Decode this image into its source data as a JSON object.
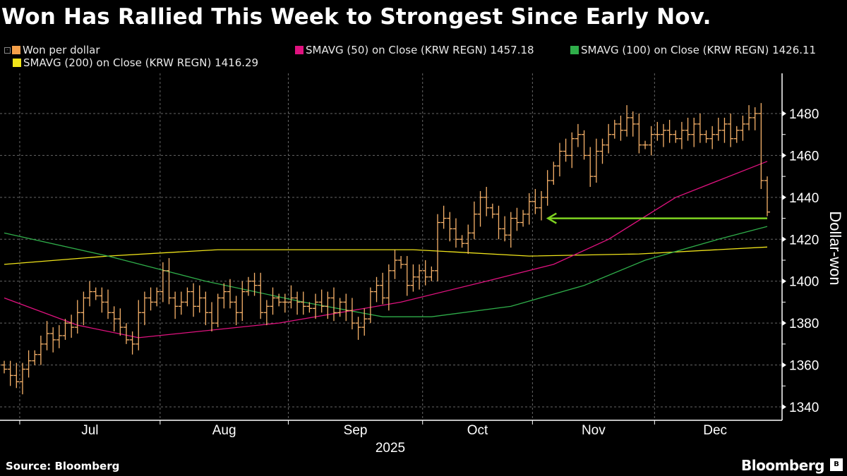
{
  "chart_data": {
    "type": "ohlc-line",
    "title": "Won Has Rallied This Week to Strongest Since Early Nov.",
    "ylabel": "Dollar-won",
    "xlabel": "2025",
    "ylim": [
      1333,
      1492
    ],
    "yticks": [
      "1340",
      "1360",
      "1380",
      "1400",
      "1420",
      "1440",
      "1460",
      "1480"
    ],
    "ytick_values": [
      1340,
      1360,
      1380,
      1400,
      1420,
      1440,
      1460,
      1480
    ],
    "xticks": [
      "Jul",
      "Aug",
      "Sep",
      "Oct",
      "Nov",
      "Dec"
    ],
    "month_start_bar": [
      3,
      26,
      47,
      69,
      87,
      107
    ],
    "n_bars": 126,
    "legend": {
      "won": "Won per dollar",
      "sma50": "SMAVG (50)  on Close (KRW REGN) 1457.18",
      "sma100": "SMAVG (100)  on Close (KRW REGN) 1426.11",
      "sma200": "SMAVG (200)  on Close (KRW REGN) 1416.29"
    },
    "colors": {
      "won": "#f7b26a",
      "sma50": "#e0127f",
      "sma100": "#2fae4a",
      "sma200": "#f0e41a",
      "arrow": "#7ed321",
      "legend_won": "#f5a04a"
    },
    "won_close": [
      1358,
      1355,
      1352,
      1358,
      1362,
      1365,
      1370,
      1375,
      1372,
      1374,
      1380,
      1378,
      1385,
      1392,
      1395,
      1393,
      1390,
      1385,
      1382,
      1378,
      1372,
      1370,
      1385,
      1392,
      1390,
      1395,
      1405,
      1392,
      1388,
      1390,
      1395,
      1388,
      1392,
      1385,
      1380,
      1392,
      1395,
      1390,
      1385,
      1395,
      1400,
      1398,
      1385,
      1388,
      1392,
      1390,
      1390,
      1392,
      1390,
      1388,
      1387,
      1390,
      1388,
      1392,
      1385,
      1390,
      1386,
      1380,
      1378,
      1382,
      1395,
      1398,
      1392,
      1405,
      1410,
      1408,
      1398,
      1402,
      1405,
      1402,
      1405,
      1428,
      1430,
      1425,
      1420,
      1418,
      1423,
      1432,
      1440,
      1435,
      1432,
      1425,
      1422,
      1430,
      1428,
      1432,
      1438,
      1435,
      1440,
      1448,
      1455,
      1462,
      1460,
      1468,
      1470,
      1460,
      1450,
      1462,
      1465,
      1470,
      1475,
      1472,
      1478,
      1475,
      1465,
      1465,
      1470,
      1470,
      1472,
      1470,
      1468,
      1472,
      1470,
      1475,
      1470,
      1468,
      1470,
      1472,
      1475,
      1468,
      1472,
      1475,
      1478,
      1480,
      1448,
      1433
    ],
    "sma50": [
      [
        0,
        1392
      ],
      [
        12,
        1379
      ],
      [
        22,
        1373
      ],
      [
        45,
        1380
      ],
      [
        65,
        1390
      ],
      [
        79,
        1400
      ],
      [
        90,
        1408
      ],
      [
        99,
        1420
      ],
      [
        110,
        1440
      ],
      [
        125,
        1457.18
      ]
    ],
    "sma100": [
      [
        0,
        1423
      ],
      [
        17,
        1412
      ],
      [
        33,
        1400
      ],
      [
        49,
        1390
      ],
      [
        62,
        1383
      ],
      [
        70,
        1383
      ],
      [
        83,
        1388
      ],
      [
        95,
        1398
      ],
      [
        105,
        1410
      ],
      [
        117,
        1420
      ],
      [
        125,
        1426.11
      ]
    ],
    "sma200": [
      [
        0,
        1408
      ],
      [
        17,
        1412
      ],
      [
        35,
        1415
      ],
      [
        67,
        1415
      ],
      [
        86,
        1412
      ],
      [
        104,
        1413
      ],
      [
        125,
        1416.29
      ]
    ],
    "arrow": {
      "level": 1430,
      "from_bar": 90,
      "to_bar": 125
    }
  },
  "footer": {
    "source": "Source: Bloomberg",
    "brand": "Bloomberg",
    "brand_icon": "B"
  }
}
